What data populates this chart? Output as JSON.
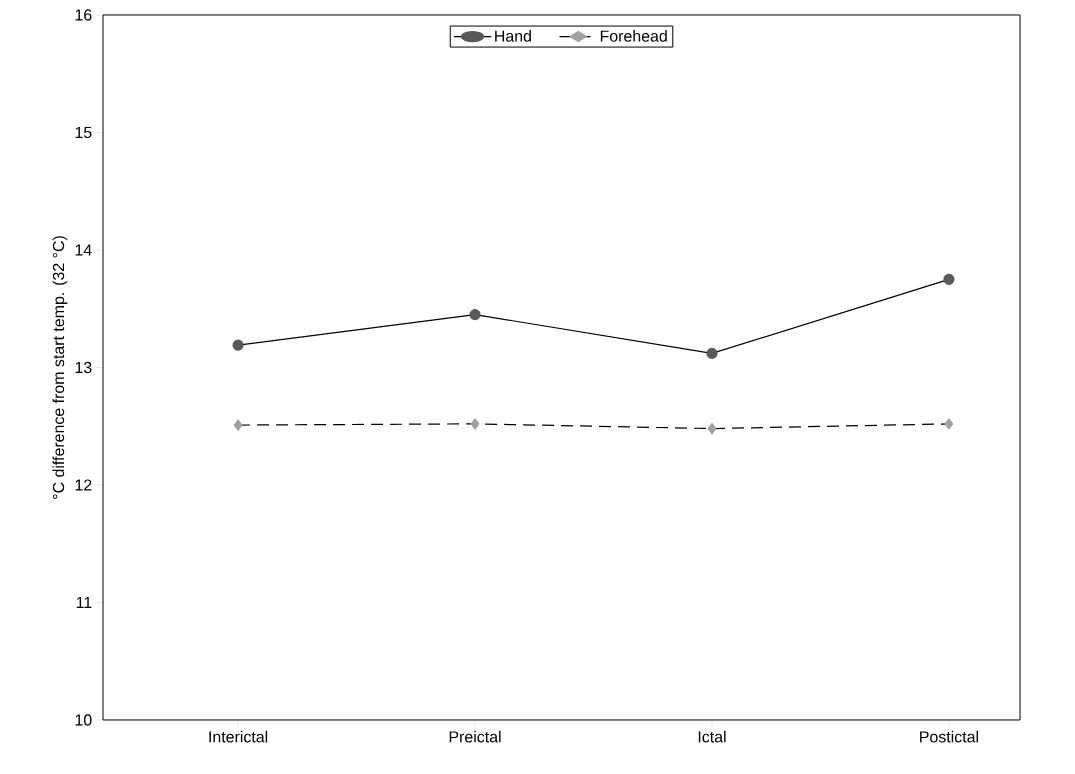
{
  "chart_data": {
    "type": "line",
    "ylabel": "°C difference from start temp. (32 °C)",
    "categories": [
      "Interictal",
      "Preictal",
      "Ictal",
      "Postictal"
    ],
    "series": [
      {
        "name": "Hand",
        "color": "#595959",
        "values": [
          13.19,
          13.45,
          13.12,
          13.75
        ],
        "marker": "circle",
        "line_style": "solid"
      },
      {
        "name": "Forehead",
        "color": "#a0a0a0",
        "values": [
          12.51,
          12.52,
          12.48,
          12.52
        ],
        "marker": "diamond",
        "line_style": "dashed"
      }
    ],
    "ylim": [
      10,
      16
    ],
    "yticks": [
      10,
      11,
      12,
      13,
      14,
      15,
      16
    ],
    "grid": false,
    "legend": "top"
  }
}
